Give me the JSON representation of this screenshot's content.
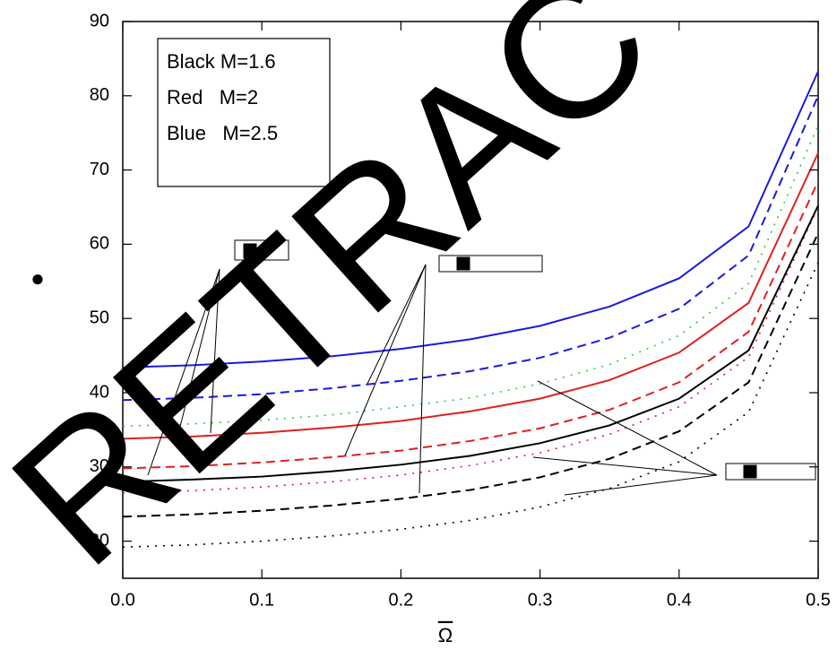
{
  "chart_data": {
    "type": "line",
    "xlabel": "Ω",
    "ylabel": "●",
    "legend_text": [
      "Black M=1.6",
      "Red   M=2",
      "Blue   M=2.5"
    ],
    "watermark": "RETRAC",
    "x": [
      0,
      0.05,
      0.1,
      0.15,
      0.2,
      0.25,
      0.3,
      0.35,
      0.4,
      0.45,
      0.5
    ],
    "series": [
      {
        "color": "#1a1adf",
        "style": "solid",
        "values": [
          43.4,
          43.7,
          44.2,
          44.9,
          45.9,
          47.2,
          49.0,
          51.6,
          55.4,
          62.4,
          83.3
        ]
      },
      {
        "color": "#1a1adf",
        "style": "dashed",
        "values": [
          39,
          39.3,
          39.8,
          40.6,
          41.6,
          42.9,
          44.7,
          47.4,
          51.3,
          58.5,
          80
        ]
      },
      {
        "color": "#33cc33",
        "style": "dotted",
        "values": [
          35.5,
          35.8,
          36.3,
          37.0,
          38.1,
          39.3,
          41.2,
          43.8,
          47.7,
          54.7,
          76
        ]
      },
      {
        "color": "#e02020",
        "style": "solid",
        "values": [
          33.8,
          34.1,
          34.6,
          35.3,
          36.2,
          37.5,
          39.2,
          41.7,
          45.4,
          52.1,
          72.3
        ]
      },
      {
        "color": "#e02020",
        "style": "dashed",
        "values": [
          29.8,
          30.1,
          30.6,
          31.3,
          32.2,
          33.5,
          35.2,
          37.7,
          41.4,
          48.2,
          68.5
        ]
      },
      {
        "color": "#e02020",
        "style": "dotted",
        "values": [
          26.5,
          26.8,
          27.3,
          28.0,
          28.9,
          30.2,
          31.9,
          34.4,
          38.1,
          44.8,
          65
        ]
      },
      {
        "color": "#000000",
        "style": "solid",
        "values": [
          28,
          28.3,
          28.7,
          29.4,
          30.3,
          31.5,
          33.2,
          35.6,
          39.2,
          45.7,
          65.2
        ]
      },
      {
        "color": "#000000",
        "style": "dashed",
        "values": [
          23.3,
          23.6,
          24.1,
          24.8,
          25.7,
          26.9,
          28.6,
          31.1,
          34.8,
          41.4,
          61.5
        ]
      },
      {
        "color": "#000000",
        "style": "dotted",
        "values": [
          19.2,
          19.5,
          20.0,
          20.7,
          21.6,
          22.8,
          24.6,
          27.1,
          30.7,
          37.4,
          57.5
        ]
      }
    ],
    "xlim": [
      0,
      0.5
    ],
    "ylim": [
      15,
      90
    ],
    "xticks": [
      {
        "value": 0,
        "label": "0.0"
      },
      0.1,
      0.2,
      0.3,
      0.4,
      0.5
    ],
    "yticks": [
      20,
      30,
      40,
      50,
      60,
      70,
      80,
      90
    ],
    "watermark_color": "#ff2200"
  }
}
